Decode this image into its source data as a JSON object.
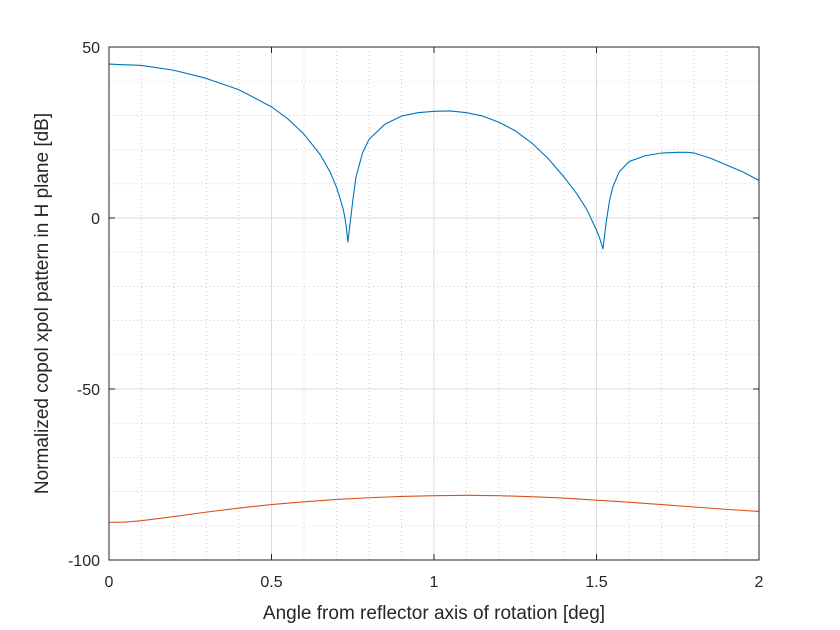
{
  "chart_data": {
    "type": "line",
    "xlabel": "Angle from reflector axis of rotation [deg]",
    "ylabel": "Normalized copol xpol pattern in H plane [dB]",
    "xlim": [
      0,
      2
    ],
    "ylim": [
      -100,
      50
    ],
    "xticks": [
      0,
      0.5,
      1,
      1.5,
      2
    ],
    "xtick_labels": [
      "0",
      "0.5",
      "1",
      "1.5",
      "2"
    ],
    "yticks": [
      -100,
      -50,
      0,
      50
    ],
    "ytick_labels": [
      "-100",
      "-50",
      "0",
      "50"
    ],
    "grid": true,
    "minor_grid": true,
    "series": [
      {
        "color": "#0072BD",
        "x": [
          0,
          0.1,
          0.2,
          0.3,
          0.4,
          0.5,
          0.55,
          0.6,
          0.65,
          0.68,
          0.7,
          0.71,
          0.72,
          0.725,
          0.73,
          0.735,
          0.74,
          0.745,
          0.75,
          0.76,
          0.78,
          0.8,
          0.85,
          0.9,
          0.95,
          1.0,
          1.05,
          1.1,
          1.15,
          1.2,
          1.25,
          1.3,
          1.35,
          1.4,
          1.44,
          1.47,
          1.49,
          1.5,
          1.51,
          1.515,
          1.52,
          1.525,
          1.53,
          1.535,
          1.54,
          1.55,
          1.57,
          1.6,
          1.65,
          1.7,
          1.75,
          1.78,
          1.8,
          1.85,
          1.9,
          1.95,
          2.0
        ],
        "y": [
          45,
          44.6,
          43.2,
          40.8,
          37.5,
          32.5,
          29,
          24.5,
          18.5,
          13.5,
          9,
          6,
          2.8,
          0.5,
          -2.5,
          -7,
          -3,
          1,
          5,
          12,
          19,
          23,
          27.5,
          29.8,
          30.8,
          31.2,
          31.3,
          30.8,
          29.8,
          28,
          25.5,
          22,
          17.5,
          12,
          7,
          2.5,
          -1.5,
          -3.5,
          -6,
          -7.5,
          -9,
          -5,
          -1,
          2,
          5,
          9,
          13.5,
          16.5,
          18.2,
          19,
          19.2,
          19.2,
          19,
          17.5,
          15.5,
          13.5,
          11
        ]
      },
      {
        "color": "#D95319",
        "x": [
          0,
          0.05,
          0.1,
          0.2,
          0.3,
          0.4,
          0.5,
          0.6,
          0.7,
          0.8,
          0.9,
          1.0,
          1.1,
          1.2,
          1.3,
          1.4,
          1.5,
          1.6,
          1.7,
          1.8,
          1.9,
          2.0
        ],
        "y": [
          -89,
          -88.9,
          -88.5,
          -87.3,
          -86,
          -84.8,
          -83.8,
          -83,
          -82.3,
          -81.8,
          -81.4,
          -81.2,
          -81.1,
          -81.2,
          -81.5,
          -81.9,
          -82.5,
          -83.1,
          -83.8,
          -84.5,
          -85.2,
          -85.8
        ]
      }
    ]
  }
}
